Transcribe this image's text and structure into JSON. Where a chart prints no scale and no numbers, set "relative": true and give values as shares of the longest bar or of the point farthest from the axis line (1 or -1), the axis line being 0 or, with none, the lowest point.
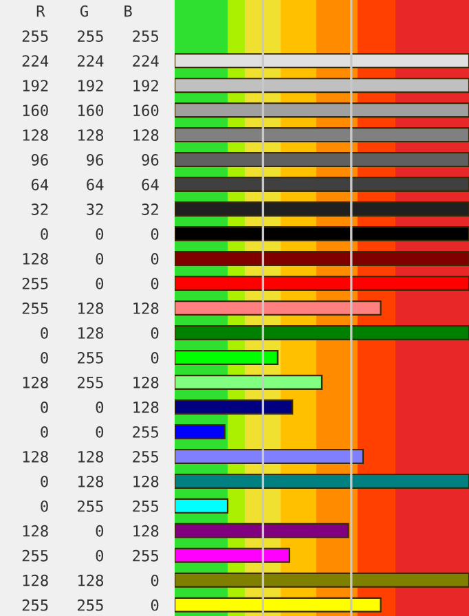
{
  "chart_data": {
    "type": "bar",
    "orientation": "horizontal",
    "relative": true,
    "categories": [
      "255 255 255",
      "224 224 224",
      "192 192 192",
      "160 160 160",
      "128 128 128",
      "96 96 96",
      "64 64 64",
      "32 32 32",
      "0 0 0",
      "128 0 0",
      "255 0 0",
      "255 128 128",
      "0 128 0",
      "0 255 0",
      "128 255 128",
      "0 0 128",
      "0 0 255",
      "128 128 255",
      "0 128 128",
      "0 255 255",
      "128 0 128",
      "255 0 255",
      "128 128 0",
      "255 255 0"
    ],
    "values": [
      0,
      1,
      1,
      1,
      1,
      1,
      1,
      1,
      1,
      1,
      1,
      0.7,
      1,
      0.35,
      0.5,
      0.4,
      0.17,
      0.64,
      1,
      0.18,
      0.59,
      0.39,
      1,
      0.7
    ],
    "colors": [
      "#ffffff",
      "#e0e0e0",
      "#c0c0c0",
      "#a0a0a0",
      "#808080",
      "#606060",
      "#404040",
      "#202020",
      "#000000",
      "#800000",
      "#ff0000",
      "#ff8080",
      "#008000",
      "#00ff00",
      "#80ff80",
      "#000080",
      "#0000ff",
      "#8080ff",
      "#008080",
      "#00ffff",
      "#800080",
      "#ff00ff",
      "#808000",
      "#ffff00"
    ],
    "annotations": [
      "R",
      "G",
      "B"
    ],
    "ref_lines": [
      {
        "axis": "x",
        "value": 0.3,
        "color": "#c8c8c8"
      },
      {
        "axis": "x",
        "value": 0.6,
        "color": "#c8c8c8"
      }
    ],
    "bands": [
      {
        "axis": "x",
        "from": 0,
        "to": 0.18,
        "color": "#30e030"
      },
      {
        "axis": "x",
        "from": 0.18,
        "to": 0.24,
        "color": "#aaf000"
      },
      {
        "axis": "x",
        "from": 0.24,
        "to": 0.36,
        "color": "#f0e030"
      },
      {
        "axis": "x",
        "from": 0.36,
        "to": 0.48,
        "color": "#ffc000"
      },
      {
        "axis": "x",
        "from": 0.48,
        "to": 0.62,
        "color": "#ff8c00"
      },
      {
        "axis": "x",
        "from": 0.62,
        "to": 0.75,
        "color": "#ff4000"
      },
      {
        "axis": "x",
        "from": 0.75,
        "to": 1,
        "color": "#e82828"
      }
    ],
    "grid": false,
    "legend": false
  }
}
